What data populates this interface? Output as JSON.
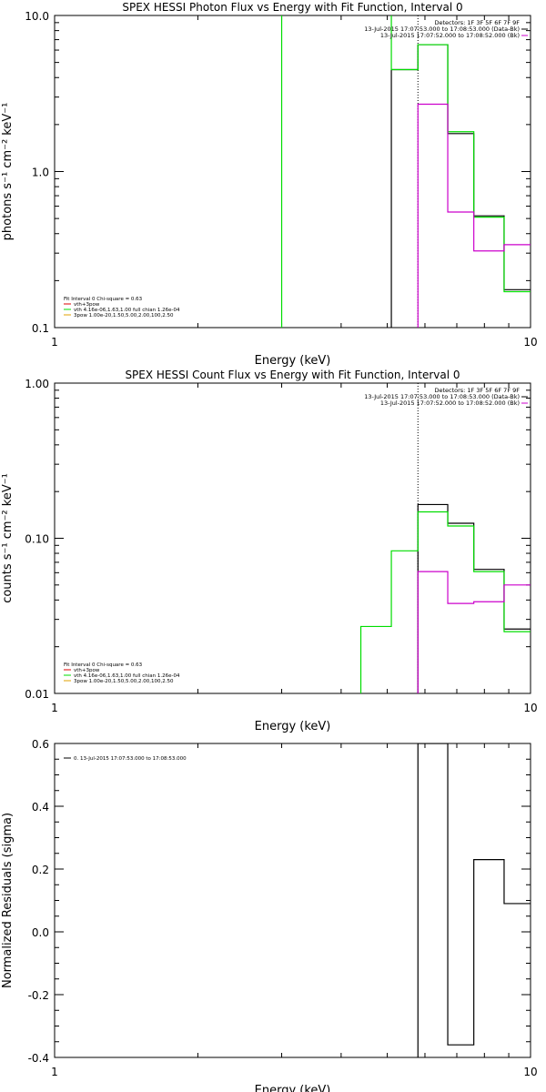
{
  "colors": {
    "black": "#000000",
    "green": "#00dd00",
    "magenta": "#cc00cc",
    "red": "#dd0000",
    "orange": "#e0a000"
  },
  "chart_data": [
    {
      "type": "line",
      "drawstyle": "steps",
      "title": "SPEX HESSI Photon Flux vs Energy with Fit Function, Interval 0",
      "xlabel": "Energy (keV)",
      "ylabel": "photons s⁻¹ cm⁻² keV⁻¹",
      "xscale": "log",
      "yscale": "log",
      "xlim": [
        1,
        10
      ],
      "ylim": [
        0.1,
        10
      ],
      "x_ticks": [
        "1",
        "10"
      ],
      "y_ticks": [
        {
          "value": 0.1,
          "label": "0.1"
        },
        {
          "value": 1,
          "label": "1.0"
        },
        {
          "value": 10,
          "label": "10.0"
        }
      ],
      "info_lines": [
        "Detectors: 1F 3F 5F 6F 7F 9F",
        "13-Jul-2015 17:07:53.000 to 17:08:53.000 (Data-Bk)",
        "13-Jul-2015 17:07:52.000 to 17:08:52.000 (Bk)"
      ],
      "legend_title": "Fit Interval 0   Chi-square = 0.63",
      "legend": [
        {
          "label": "vth+3pow",
          "color": "#dd0000"
        },
        {
          "label": "vth 4.16e-06,1.63,1.00  full chian 1.26e-04",
          "color": "#00dd00"
        },
        {
          "label": "3pow 1.00e-20,1.50,5.00,2.00,100,2.50",
          "color": "#e0a000"
        }
      ],
      "vline_x": 5.8,
      "series": [
        {
          "color": "#000000",
          "edges": [
            5.1,
            5.8,
            6.7,
            7.6,
            8.8,
            10.2
          ],
          "values": [
            4.5,
            6.5,
            1.75,
            0.52,
            0.175
          ]
        },
        {
          "color": "#00dd00",
          "edges": [
            3.0,
            5.1,
            5.8,
            6.7,
            7.6,
            8.8,
            10.2
          ],
          "values": [
            100,
            4.5,
            6.5,
            1.8,
            0.51,
            0.17
          ]
        },
        {
          "color": "#cc00cc",
          "edges": [
            5.8,
            6.7,
            7.6,
            8.8,
            10.2
          ],
          "values": [
            2.7,
            0.55,
            0.31,
            0.34
          ]
        }
      ]
    },
    {
      "type": "line",
      "drawstyle": "steps",
      "title": "SPEX HESSI Count Flux vs Energy with Fit Function, Interval 0",
      "xlabel": "Energy (keV)",
      "ylabel": "counts s⁻¹ cm⁻² keV⁻¹",
      "xscale": "log",
      "yscale": "log",
      "xlim": [
        1,
        10
      ],
      "ylim": [
        0.01,
        1
      ],
      "x_ticks": [
        "1",
        "10"
      ],
      "y_ticks": [
        {
          "value": 0.01,
          "label": "0.01"
        },
        {
          "value": 0.1,
          "label": "0.10"
        },
        {
          "value": 1,
          "label": "1.00"
        }
      ],
      "info_lines": [
        "Detectors: 1F 3F 5F 6F 7F 9F",
        "13-Jul-2015 17:07:53.000 to 17:08:53.000 (Data-Bk)",
        "13-Jul-2015 17:07:52.000 to 17:08:52.000 (Bk)"
      ],
      "legend_title": "Fit Interval 0   Chi-square = 0.63",
      "legend": [
        {
          "label": "vth+3pow",
          "color": "#dd0000"
        },
        {
          "label": "vth 4.16e-06,1.63,1.00  full chian 1.26e-04",
          "color": "#00dd00"
        },
        {
          "label": "3pow 1.00e-20,1.50,5.00,2.00,100,2.50",
          "color": "#e0a000"
        }
      ],
      "vline_x": 5.8,
      "series": [
        {
          "color": "#000000",
          "edges": [
            5.8,
            6.7,
            7.6,
            8.8,
            10.2
          ],
          "values": [
            0.165,
            0.125,
            0.063,
            0.026
          ]
        },
        {
          "color": "#00dd00",
          "edges": [
            4.4,
            5.1,
            5.8,
            6.7,
            7.6,
            8.8,
            10.2
          ],
          "values": [
            0.027,
            0.083,
            0.148,
            0.12,
            0.061,
            0.025
          ]
        },
        {
          "color": "#cc00cc",
          "edges": [
            5.8,
            6.7,
            7.6,
            8.8,
            10.2
          ],
          "values": [
            0.061,
            0.038,
            0.039,
            0.05
          ]
        }
      ]
    },
    {
      "type": "line",
      "drawstyle": "steps",
      "title": "",
      "xlabel": "Energy (keV)",
      "ylabel": "Normalized Residuals (sigma)",
      "xscale": "log",
      "yscale": "linear",
      "xlim": [
        1,
        10
      ],
      "ylim": [
        -0.4,
        0.6
      ],
      "x_ticks": [
        "1",
        "10"
      ],
      "y_ticks": [
        {
          "value": -0.4,
          "label": "-0.4"
        },
        {
          "value": -0.2,
          "label": "-0.2"
        },
        {
          "value": 0,
          "label": "0.0"
        },
        {
          "value": 0.2,
          "label": "0.2"
        },
        {
          "value": 0.4,
          "label": "0.4"
        },
        {
          "value": 0.6,
          "label": "0.6"
        }
      ],
      "legend": [
        {
          "label": "0. 13-Jul-2015 17:07:53.000 to 17:08:53.000",
          "color": "#000000"
        }
      ],
      "series": [
        {
          "color": "#000000",
          "edges": [
            5.8,
            6.7,
            7.6,
            8.8,
            10.2
          ],
          "values": [
            0.6,
            -0.36,
            0.23,
            0.09
          ],
          "baseline": -0.4
        }
      ]
    }
  ]
}
